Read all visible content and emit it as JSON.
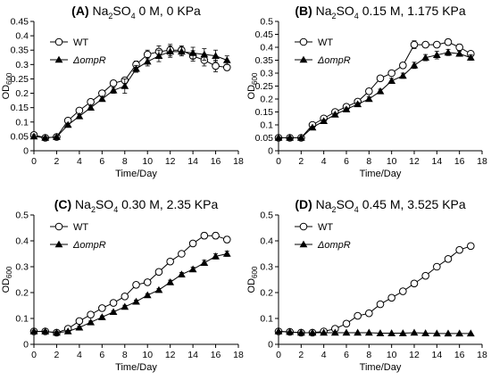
{
  "chart_data": [
    {
      "type": "line",
      "panel": "(A)",
      "title": {
        "prefix": "(A) ",
        "salt": "Na",
        "sub": "2",
        "salt2": "SO",
        "sub2": "4",
        "rest": " 0 M,  0 KPa"
      },
      "xlabel": "Time/Day",
      "ylabel": {
        "main": "OD",
        "sub": "600"
      },
      "xlim": [
        0,
        18
      ],
      "ylim": [
        0,
        0.45
      ],
      "xticks": [
        0,
        2,
        4,
        6,
        8,
        10,
        12,
        14,
        16,
        18
      ],
      "yticks": [
        0,
        0.05,
        0.1,
        0.15,
        0.2,
        0.25,
        0.3,
        0.35,
        0.4,
        0.45
      ],
      "ytick_labels": [
        "0",
        "0.05",
        "0.1",
        "0.15",
        "0.2",
        "0.25",
        "0.3",
        "0.35",
        "0.4",
        "0.45"
      ],
      "legend_position": "top-left",
      "x": [
        0,
        1,
        2,
        3,
        4,
        5,
        6,
        7,
        8,
        9,
        10,
        11,
        12,
        13,
        14,
        15,
        16,
        17
      ],
      "series": [
        {
          "name": "WT",
          "marker": "open-circle",
          "values": [
            0.055,
            0.045,
            0.048,
            0.105,
            0.14,
            0.17,
            0.2,
            0.235,
            0.245,
            0.3,
            0.335,
            0.345,
            0.35,
            0.35,
            0.33,
            0.315,
            0.295,
            0.29
          ],
          "errors": [
            0.006,
            0.004,
            0.004,
            0.006,
            0.006,
            0.006,
            0.008,
            0.01,
            0.01,
            0.012,
            0.015,
            0.02,
            0.02,
            0.015,
            0.018,
            0.02,
            0.02,
            0.01
          ]
        },
        {
          "name": "ΔompR",
          "marker": "filled-triangle",
          "values": [
            0.05,
            0.045,
            0.048,
            0.09,
            0.12,
            0.15,
            0.18,
            0.21,
            0.225,
            0.285,
            0.31,
            0.33,
            0.345,
            0.345,
            0.34,
            0.335,
            0.33,
            0.315
          ],
          "errors": [
            0.006,
            0.004,
            0.004,
            0.006,
            0.006,
            0.006,
            0.008,
            0.01,
            0.025,
            0.012,
            0.015,
            0.02,
            0.02,
            0.015,
            0.02,
            0.02,
            0.02,
            0.015
          ]
        }
      ]
    },
    {
      "type": "line",
      "panel": "(B)",
      "title": {
        "prefix": "(B) ",
        "salt": "Na",
        "sub": "2",
        "salt2": "SO",
        "sub2": "4",
        "rest": " 0.15 M, 1.175 KPa"
      },
      "xlabel": "Time/Day",
      "ylabel": {
        "main": "OD",
        "sub": "600"
      },
      "xlim": [
        0,
        18
      ],
      "ylim": [
        0,
        0.5
      ],
      "xticks": [
        0,
        2,
        4,
        6,
        8,
        10,
        12,
        14,
        16,
        18
      ],
      "yticks": [
        0,
        0.05,
        0.1,
        0.15,
        0.2,
        0.25,
        0.3,
        0.35,
        0.4,
        0.45,
        0.5
      ],
      "ytick_labels": [
        "0",
        "0.05",
        "0.1",
        "0.15",
        "0.2",
        "0.25",
        "0.3",
        "0.35",
        "0.4",
        "0.45",
        "0.5"
      ],
      "legend_position": "top-left",
      "x": [
        0,
        1,
        2,
        3,
        4,
        5,
        6,
        7,
        8,
        9,
        10,
        11,
        12,
        13,
        14,
        15,
        16,
        17
      ],
      "series": [
        {
          "name": "WT",
          "marker": "open-circle",
          "values": [
            0.05,
            0.05,
            0.05,
            0.1,
            0.125,
            0.15,
            0.17,
            0.19,
            0.23,
            0.28,
            0.3,
            0.33,
            0.41,
            0.41,
            0.41,
            0.42,
            0.4,
            0.375
          ],
          "errors": [
            0.004,
            0.004,
            0.004,
            0.005,
            0.005,
            0.005,
            0.006,
            0.006,
            0.008,
            0.008,
            0.01,
            0.01,
            0.015,
            0.01,
            0.01,
            0.012,
            0.012,
            0.01
          ]
        },
        {
          "name": "ΔompR",
          "marker": "filled-triangle",
          "values": [
            0.05,
            0.05,
            0.05,
            0.09,
            0.115,
            0.14,
            0.16,
            0.18,
            0.2,
            0.23,
            0.27,
            0.29,
            0.33,
            0.36,
            0.37,
            0.38,
            0.375,
            0.36
          ],
          "errors": [
            0.004,
            0.004,
            0.004,
            0.005,
            0.005,
            0.005,
            0.006,
            0.006,
            0.008,
            0.008,
            0.01,
            0.01,
            0.012,
            0.012,
            0.015,
            0.012,
            0.01,
            0.01
          ]
        }
      ]
    },
    {
      "type": "line",
      "panel": "(C)",
      "title": {
        "prefix": "(C) ",
        "salt": "Na",
        "sub": "2",
        "salt2": "SO",
        "sub2": "4",
        "rest": " 0.30 M, 2.35 KPa"
      },
      "xlabel": "Time/Day",
      "ylabel": {
        "main": "OD",
        "sub": "600"
      },
      "xlim": [
        0,
        18
      ],
      "ylim": [
        0,
        0.5
      ],
      "xticks": [
        0,
        2,
        4,
        6,
        8,
        10,
        12,
        14,
        16,
        18
      ],
      "yticks": [
        0,
        0.1,
        0.2,
        0.3,
        0.4,
        0.5
      ],
      "ytick_labels": [
        "0",
        "0.1",
        "0.2",
        "0.3",
        "0.4",
        "0.5"
      ],
      "legend_position": "top-left",
      "x": [
        0,
        1,
        2,
        3,
        4,
        5,
        6,
        7,
        8,
        9,
        10,
        11,
        12,
        13,
        14,
        15,
        16,
        17
      ],
      "series": [
        {
          "name": "WT",
          "marker": "open-circle",
          "values": [
            0.05,
            0.05,
            0.045,
            0.06,
            0.09,
            0.115,
            0.14,
            0.16,
            0.185,
            0.23,
            0.24,
            0.28,
            0.32,
            0.35,
            0.39,
            0.42,
            0.42,
            0.405
          ],
          "errors": [
            0.004,
            0.004,
            0.004,
            0.004,
            0.005,
            0.005,
            0.005,
            0.006,
            0.006,
            0.006,
            0.008,
            0.008,
            0.008,
            0.008,
            0.01,
            0.012,
            0.012,
            0.012
          ]
        },
        {
          "name": "ΔompR",
          "marker": "filled-triangle",
          "values": [
            0.05,
            0.05,
            0.045,
            0.05,
            0.065,
            0.085,
            0.105,
            0.125,
            0.145,
            0.165,
            0.19,
            0.21,
            0.24,
            0.27,
            0.29,
            0.315,
            0.34,
            0.35
          ],
          "errors": [
            0.004,
            0.004,
            0.004,
            0.004,
            0.005,
            0.005,
            0.005,
            0.005,
            0.006,
            0.006,
            0.006,
            0.006,
            0.008,
            0.008,
            0.008,
            0.01,
            0.01,
            0.01
          ]
        }
      ]
    },
    {
      "type": "line",
      "panel": "(D)",
      "title": {
        "prefix": "(D) ",
        "salt": "Na",
        "sub": "2",
        "salt2": "SO",
        "sub2": "4",
        "rest": " 0.45 M, 3.525 KPa"
      },
      "xlabel": "Time/Day",
      "ylabel": {
        "main": "OD",
        "sub": "600"
      },
      "xlim": [
        0,
        18
      ],
      "ylim": [
        0,
        0.5
      ],
      "xticks": [
        0,
        2,
        4,
        6,
        8,
        10,
        12,
        14,
        16,
        18
      ],
      "yticks": [
        0,
        0.1,
        0.2,
        0.3,
        0.4,
        0.5
      ],
      "ytick_labels": [
        "0",
        "0.1",
        "0.2",
        "0.3",
        "0.4",
        "0.5"
      ],
      "legend_position": "top-left",
      "x": [
        0,
        1,
        2,
        3,
        4,
        5,
        6,
        7,
        8,
        9,
        10,
        11,
        12,
        13,
        14,
        15,
        16,
        17
      ],
      "series": [
        {
          "name": "WT",
          "marker": "open-circle",
          "values": [
            0.05,
            0.048,
            0.045,
            0.045,
            0.05,
            0.06,
            0.08,
            0.11,
            0.12,
            0.155,
            0.18,
            0.205,
            0.235,
            0.265,
            0.3,
            0.33,
            0.365,
            0.38
          ],
          "errors": []
        },
        {
          "name": "ΔompR",
          "marker": "filled-triangle",
          "values": [
            0.05,
            0.048,
            0.045,
            0.045,
            0.045,
            0.045,
            0.045,
            0.045,
            0.045,
            0.043,
            0.043,
            0.043,
            0.045,
            0.043,
            0.042,
            0.042,
            0.042,
            0.042
          ],
          "errors": []
        }
      ]
    }
  ]
}
